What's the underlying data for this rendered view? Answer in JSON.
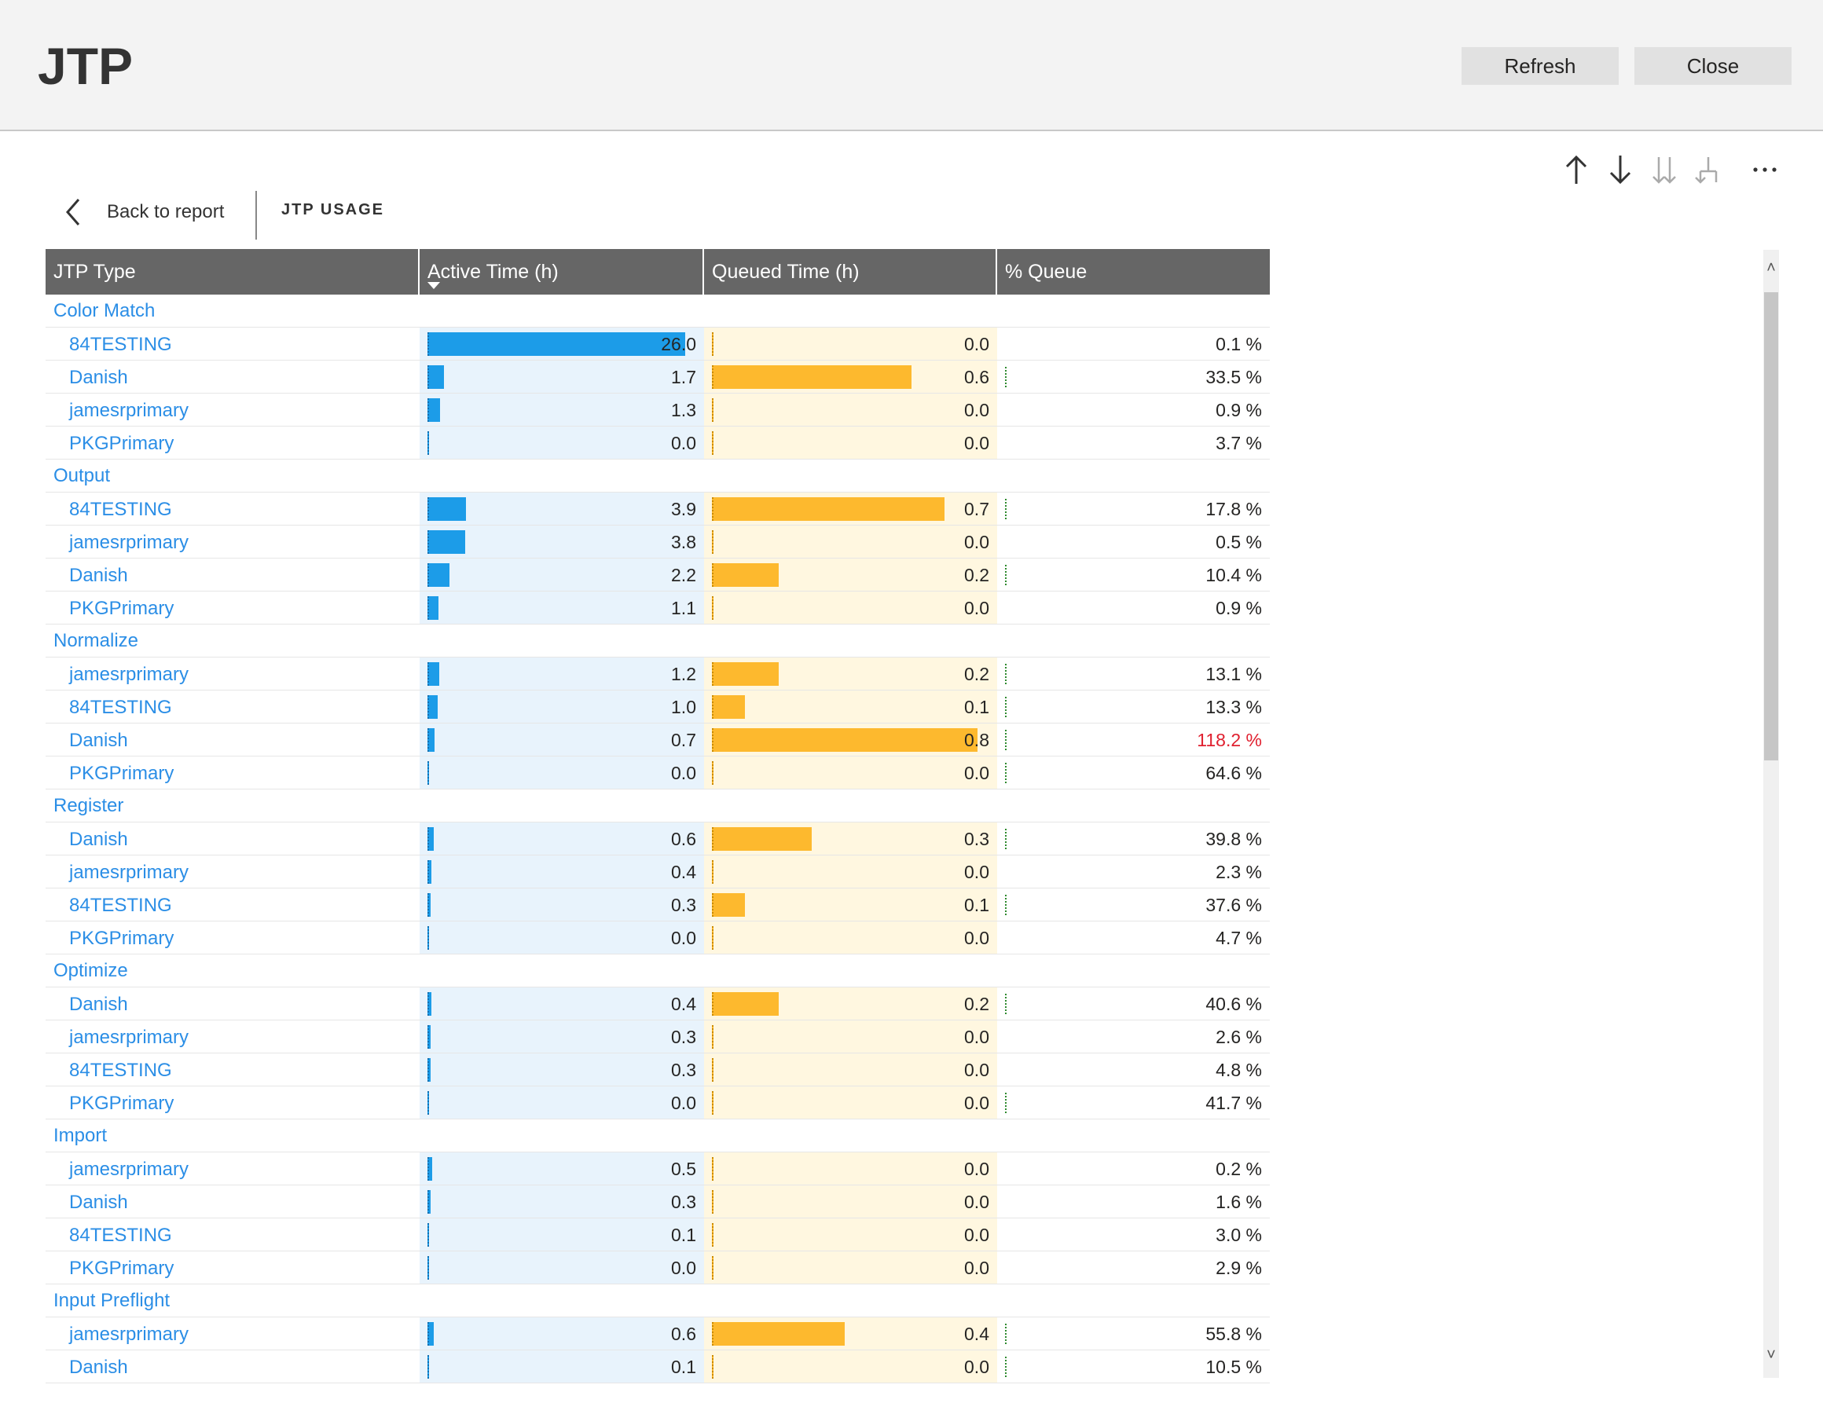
{
  "header": {
    "title": "JTP",
    "refresh_label": "Refresh",
    "close_label": "Close"
  },
  "nav": {
    "back_label": "Back to report",
    "page_name": "JTP USAGE"
  },
  "toolbar_icons": [
    "drill-up-icon",
    "drill-down-icon",
    "expand-all-icon",
    "expand-hierarchy-icon",
    "more-options-icon"
  ],
  "colors": {
    "active_bar": "#1c9ce8",
    "queued_bar": "#fdb92e",
    "header_bg": "#666666",
    "link": "#2b8ee6",
    "alert": "#e0202f"
  },
  "table": {
    "columns": [
      "JTP Type",
      "Active Time (h)",
      "Queued Time (h)",
      "% Queue"
    ],
    "sorted_column": "Active Time (h)",
    "sort_direction": "descending",
    "active_max": 26.0,
    "queued_max": 0.8,
    "groups": [
      {
        "name": "Color Match",
        "rows": [
          {
            "name": "84TESTING",
            "active": "26.0",
            "queued": "0.0",
            "queue_pct": "0.1 %"
          },
          {
            "name": "Danish",
            "active": "1.7",
            "queued": "0.6",
            "queue_pct": "33.5 %"
          },
          {
            "name": "jamesrprimary",
            "active": "1.3",
            "queued": "0.0",
            "queue_pct": "0.9 %"
          },
          {
            "name": "PKGPrimary",
            "active": "0.0",
            "queued": "0.0",
            "queue_pct": "3.7 %"
          }
        ]
      },
      {
        "name": "Output",
        "rows": [
          {
            "name": "84TESTING",
            "active": "3.9",
            "queued": "0.7",
            "queue_pct": "17.8 %"
          },
          {
            "name": "jamesrprimary",
            "active": "3.8",
            "queued": "0.0",
            "queue_pct": "0.5 %"
          },
          {
            "name": "Danish",
            "active": "2.2",
            "queued": "0.2",
            "queue_pct": "10.4 %"
          },
          {
            "name": "PKGPrimary",
            "active": "1.1",
            "queued": "0.0",
            "queue_pct": "0.9 %"
          }
        ]
      },
      {
        "name": "Normalize",
        "rows": [
          {
            "name": "jamesrprimary",
            "active": "1.2",
            "queued": "0.2",
            "queue_pct": "13.1 %"
          },
          {
            "name": "84TESTING",
            "active": "1.0",
            "queued": "0.1",
            "queue_pct": "13.3 %"
          },
          {
            "name": "Danish",
            "active": "0.7",
            "queued": "0.8",
            "queue_pct": "118.2 %"
          },
          {
            "name": "PKGPrimary",
            "active": "0.0",
            "queued": "0.0",
            "queue_pct": "64.6 %"
          }
        ]
      },
      {
        "name": "Register",
        "rows": [
          {
            "name": "Danish",
            "active": "0.6",
            "queued": "0.3",
            "queue_pct": "39.8 %"
          },
          {
            "name": "jamesrprimary",
            "active": "0.4",
            "queued": "0.0",
            "queue_pct": "2.3 %"
          },
          {
            "name": "84TESTING",
            "active": "0.3",
            "queued": "0.1",
            "queue_pct": "37.6 %"
          },
          {
            "name": "PKGPrimary",
            "active": "0.0",
            "queued": "0.0",
            "queue_pct": "4.7 %"
          }
        ]
      },
      {
        "name": "Optimize",
        "rows": [
          {
            "name": "Danish",
            "active": "0.4",
            "queued": "0.2",
            "queue_pct": "40.6 %"
          },
          {
            "name": "jamesrprimary",
            "active": "0.3",
            "queued": "0.0",
            "queue_pct": "2.6 %"
          },
          {
            "name": "84TESTING",
            "active": "0.3",
            "queued": "0.0",
            "queue_pct": "4.8 %"
          },
          {
            "name": "PKGPrimary",
            "active": "0.0",
            "queued": "0.0",
            "queue_pct": "41.7 %"
          }
        ]
      },
      {
        "name": "Import",
        "rows": [
          {
            "name": "jamesrprimary",
            "active": "0.5",
            "queued": "0.0",
            "queue_pct": "0.2 %"
          },
          {
            "name": "Danish",
            "active": "0.3",
            "queued": "0.0",
            "queue_pct": "1.6 %"
          },
          {
            "name": "84TESTING",
            "active": "0.1",
            "queued": "0.0",
            "queue_pct": "3.0 %"
          },
          {
            "name": "PKGPrimary",
            "active": "0.0",
            "queued": "0.0",
            "queue_pct": "2.9 %"
          }
        ]
      },
      {
        "name": "Input Preflight",
        "rows": [
          {
            "name": "jamesrprimary",
            "active": "0.6",
            "queued": "0.4",
            "queue_pct": "55.8 %"
          },
          {
            "name": "Danish",
            "active": "0.1",
            "queued": "0.0",
            "queue_pct": "10.5 %"
          }
        ]
      }
    ]
  }
}
